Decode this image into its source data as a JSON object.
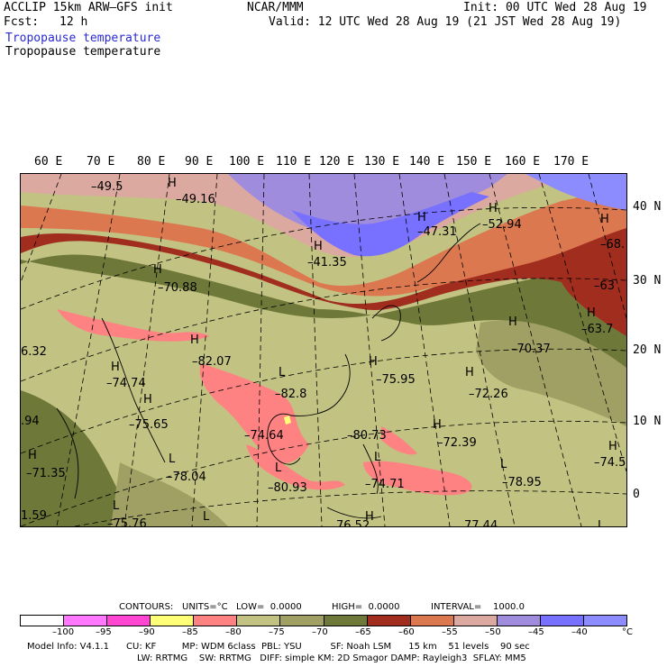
{
  "header": {
    "model_line": "ACCLIP 15km ARW–GFS init",
    "fcst_label": "Fcst:",
    "fcst_value": "12 h",
    "center": "NCAR/MMM",
    "init": "Init: 00 UTC Wed 28 Aug 19",
    "valid": "Valid: 12 UTC Wed 28 Aug 19 (21 JST Wed 28 Aug 19)",
    "field_title_1": "Tropopause temperature",
    "field_title_2": "Tropopause temperature"
  },
  "longitude_labels": [
    "60 E",
    "70 E",
    "80 E",
    "90 E",
    "100 E",
    "110 E",
    "120 E",
    "130 E",
    "140 E",
    "150 E",
    "160 E",
    "170 E"
  ],
  "latitude_labels": [
    "40 N",
    "30 N",
    "20 N",
    "10 N",
    "0"
  ],
  "map_labels": [
    {
      "text": "–49.5"
    },
    {
      "text": "H"
    },
    {
      "text": "–49.16"
    },
    {
      "text": "H"
    },
    {
      "text": "–47.31"
    },
    {
      "text": "H"
    },
    {
      "text": "–52.94"
    },
    {
      "text": "H"
    },
    {
      "text": "–41.35"
    },
    {
      "text": "H"
    },
    {
      "text": "–68."
    },
    {
      "text": "H"
    },
    {
      "text": "–70.88"
    },
    {
      "text": "–63"
    },
    {
      "text": "H"
    },
    {
      "text": "–63.7"
    },
    {
      "text": "H"
    },
    {
      "text": "–70.37"
    },
    {
      "text": "6.32"
    },
    {
      "text": "H"
    },
    {
      "text": "–82.07"
    },
    {
      "text": "H"
    },
    {
      "text": "–75.95"
    },
    {
      "text": "H"
    },
    {
      "text": "–74.74"
    },
    {
      "text": "L"
    },
    {
      "text": "–82.8"
    },
    {
      "text": "H"
    },
    {
      "text": "–72.26"
    },
    {
      "text": "H"
    },
    {
      "text": "–75.65"
    },
    {
      "text": ".94"
    },
    {
      "text": "–74.64"
    },
    {
      "text": "–80.73"
    },
    {
      "text": "H"
    },
    {
      "text": "–72.39"
    },
    {
      "text": "H"
    },
    {
      "text": "–71.35"
    },
    {
      "text": "L"
    },
    {
      "text": "–78.04"
    },
    {
      "text": "L"
    },
    {
      "text": "–74.71"
    },
    {
      "text": "L"
    },
    {
      "text": "–78.95"
    },
    {
      "text": "H"
    },
    {
      "text": "–74.5"
    },
    {
      "text": "L"
    },
    {
      "text": "–80.93"
    },
    {
      "text": "1.59"
    },
    {
      "text": "L"
    },
    {
      "text": "–75.76"
    },
    {
      "text": "L"
    },
    {
      "text": "H"
    },
    {
      "text": "76.52"
    },
    {
      "text": "77.44"
    },
    {
      "text": "L"
    }
  ],
  "contour_info": {
    "contours": "CONTOURS:",
    "units": "UNITS=°C",
    "low": "LOW=  0.0000",
    "high": "HIGH=  0.0000",
    "interval": "INTERVAL=    1000.0"
  },
  "colorbar": {
    "colors": [
      "#ffffff",
      "#ff78ff",
      "#ff46d2",
      "#ffff78",
      "#ff8282",
      "#c2c283",
      "#a0a064",
      "#6e7838",
      "#a02d1e",
      "#dc7850",
      "#dca9a0",
      "#a08cdc",
      "#7870ff",
      "#8c8cff"
    ],
    "labels": [
      "–100",
      "–95",
      "–90",
      "–85",
      "–80",
      "–75",
      "–70",
      "–65",
      "–60",
      "–55",
      "–50",
      "–45",
      "–40",
      "°C"
    ]
  },
  "footer": {
    "line1": "Model Info: V4.1.1      CU: KF         MP: WDM 6class  PBL: YSU          SF: Noah LSM      15 km    51 levels    90 sec",
    "line2": "LW: RRTMG    SW: RRTMG   DIFF: simple KM: 2D Smagor DAMP: Rayleigh3  SFLAY: MM5"
  }
}
